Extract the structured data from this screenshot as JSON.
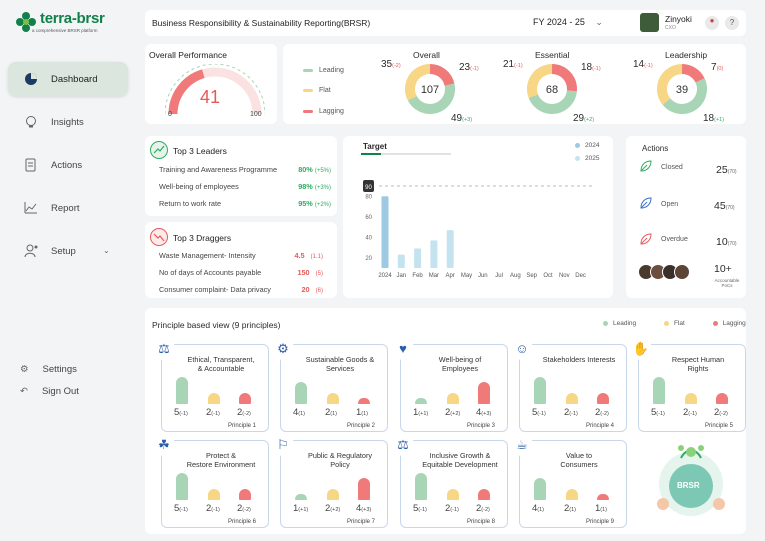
{
  "brand": {
    "name": "terra-brsr",
    "tagline": "a comprehensive BRSR platform"
  },
  "sidebar": {
    "items": [
      {
        "label": "Dashboard",
        "icon": "pie-chart-icon",
        "active": true
      },
      {
        "label": "Insights",
        "icon": "lightbulb-icon"
      },
      {
        "label": "Actions",
        "icon": "document-icon"
      },
      {
        "label": "Report",
        "icon": "line-chart-icon"
      },
      {
        "label": "Setup",
        "icon": "user-gear-icon"
      }
    ],
    "settings": "Settings",
    "signout": "Sign Out"
  },
  "header": {
    "title": "Business Responsibility & Sustainability Reporting(BRSR)",
    "fy": "FY 2024 - 25",
    "user": {
      "name": "Zinyoki",
      "role": "CXO"
    }
  },
  "performance": {
    "title": "Overall Performance",
    "value": "41",
    "value_num": 41,
    "min": "0",
    "max": "100"
  },
  "perf_legend": [
    "Leading",
    "Flat",
    "Lagging"
  ],
  "donuts": [
    {
      "title": "Overall",
      "center": "107",
      "leading": "49",
      "leading_chg": "(+3)",
      "flat": "35",
      "flat_chg": "(-2)",
      "lagging": "23",
      "lagging_chg": "(-1)",
      "v": [
        49,
        35,
        23
      ]
    },
    {
      "title": "Essential",
      "center": "68",
      "leading": "29",
      "leading_chg": "(+2)",
      "flat": "21",
      "flat_chg": "(-1)",
      "lagging": "18",
      "lagging_chg": "(-1)",
      "v": [
        29,
        21,
        18
      ]
    },
    {
      "title": "Leadership",
      "center": "39",
      "leading": "18",
      "leading_chg": "(+1)",
      "flat": "14",
      "flat_chg": "(-1)",
      "lagging": "7",
      "lagging_chg": "(0)",
      "v": [
        18,
        14,
        7
      ]
    }
  ],
  "leaders": {
    "title": "Top 3 Leaders",
    "rows": [
      {
        "name": "Training and Awareness Programme",
        "value": "80%",
        "chg": "(+5%)"
      },
      {
        "name": "Well-being of employees",
        "value": "98%",
        "chg": "(+3%)"
      },
      {
        "name": "Return to work rate",
        "value": "95%",
        "chg": "(+2%)"
      }
    ]
  },
  "draggers": {
    "title": "Top 3 Draggers",
    "rows": [
      {
        "name": "Waste Management- Intensity",
        "value": "4.5",
        "chg": "(1.1)"
      },
      {
        "name": "No of days of Accounts payable",
        "value": "150",
        "chg": "(5)"
      },
      {
        "name": "Consumer complaint- Data privacy",
        "value": "20",
        "chg": "(6)"
      }
    ]
  },
  "chart_data": {
    "type": "bar",
    "title": "Target",
    "categories": [
      "2024",
      "Jan",
      "Feb",
      "Mar",
      "Apr",
      "May",
      "Jun",
      "Jul",
      "Aug",
      "Sep",
      "Oct",
      "Nov",
      "Dec"
    ],
    "series": [
      {
        "name": "2024",
        "values": [
          80,
          null,
          null,
          null,
          null,
          null,
          null,
          null,
          null,
          null,
          null,
          null,
          null
        ]
      },
      {
        "name": "2025",
        "values": [
          null,
          23,
          29,
          37,
          47,
          null,
          null,
          null,
          null,
          null,
          null,
          null,
          null
        ]
      }
    ],
    "target_line": 90,
    "target_label": "90",
    "ylim": [
      10,
      90
    ],
    "yticks": [
      "80",
      "60",
      "40",
      "20"
    ],
    "colors": {
      "2024": "#9ec9e2",
      "2025": "#c5e3ee"
    }
  },
  "actions": {
    "title": "Actions",
    "items": [
      {
        "label": "Closed",
        "value": "25",
        "sub": "(70)",
        "icon": "leaf-green-icon"
      },
      {
        "label": "Open",
        "value": "45",
        "sub": "(70)",
        "icon": "leaf-blue-icon"
      },
      {
        "label": "Overdue",
        "value": "10",
        "sub": "(70)",
        "icon": "leaf-red-icon"
      }
    ],
    "pocs_value": "10+",
    "pocs_label1": "Accountable",
    "pocs_label2": "PoCs"
  },
  "principles": {
    "title": "Principle based view (9 principles)",
    "legend": [
      "Leading",
      "Flat",
      "Lagging"
    ],
    "items": [
      {
        "title1": "Ethical, Transparent,",
        "title2": "& Accountable",
        "label": "Principle 1",
        "vals": [
          [
            "5",
            "(-1)"
          ],
          [
            "2",
            "(-1)"
          ],
          [
            "2",
            "(-2)"
          ]
        ],
        "h": [
          5,
          2,
          2
        ]
      },
      {
        "title1": "Sustainable Goods &",
        "title2": "Services",
        "label": "Principle 2",
        "vals": [
          [
            "4",
            "(1)"
          ],
          [
            "2",
            "(1)"
          ],
          [
            "1",
            "(1)"
          ]
        ],
        "h": [
          4,
          2,
          1
        ]
      },
      {
        "title1": "Well-being of",
        "title2": "Employees",
        "label": "Principle 3",
        "vals": [
          [
            "1",
            "(+1)"
          ],
          [
            "2",
            "(+2)"
          ],
          [
            "4",
            "(+3)"
          ]
        ],
        "h": [
          1,
          2,
          4
        ]
      },
      {
        "title1": "Stakeholders Interests",
        "title2": "",
        "label": "Principle 4",
        "vals": [
          [
            "5",
            "(-1)"
          ],
          [
            "2",
            "(-1)"
          ],
          [
            "2",
            "(-2)"
          ]
        ],
        "h": [
          5,
          2,
          2
        ]
      },
      {
        "title1": "Respect Human",
        "title2": "Rights",
        "label": "Principle 5",
        "vals": [
          [
            "5",
            "(-1)"
          ],
          [
            "2",
            "(-1)"
          ],
          [
            "2",
            "(-2)"
          ]
        ],
        "h": [
          5,
          2,
          2
        ]
      },
      {
        "title1": "Protect &",
        "title2": "Restore Environment",
        "label": "Principle 6",
        "vals": [
          [
            "5",
            "(-1)"
          ],
          [
            "2",
            "(-1)"
          ],
          [
            "2",
            "(-2)"
          ]
        ],
        "h": [
          5,
          2,
          2
        ]
      },
      {
        "title1": "Public & Regulatory",
        "title2": "Policy",
        "label": "Principle 7",
        "vals": [
          [
            "1",
            "(+1)"
          ],
          [
            "2",
            "(+2)"
          ],
          [
            "4",
            "(+3)"
          ]
        ],
        "h": [
          1,
          2,
          4
        ]
      },
      {
        "title1": "Inclusive Growth &",
        "title2": "Equitable Development",
        "label": "Principle 8",
        "vals": [
          [
            "5",
            "(-1)"
          ],
          [
            "2",
            "(-1)"
          ],
          [
            "2",
            "(-2)"
          ]
        ],
        "h": [
          5,
          2,
          2
        ]
      },
      {
        "title1": "Value to",
        "title2": "Consumers",
        "label": "Principle 9",
        "vals": [
          [
            "4",
            "(1)"
          ],
          [
            "2",
            "(1)"
          ],
          [
            "1",
            "(1)"
          ]
        ],
        "h": [
          4,
          2,
          1
        ]
      }
    ]
  },
  "badge": "BRSR",
  "colors": {
    "leading": "#a8d5b5",
    "flat": "#f7d685",
    "lagging": "#f07a7a",
    "brand": "#12804a",
    "active_nav": "#dbe6df"
  }
}
